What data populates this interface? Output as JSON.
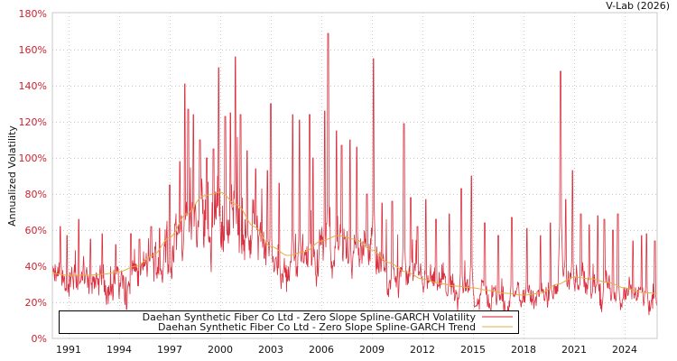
{
  "header": {
    "credit": "V-Lab (2026)"
  },
  "colors": {
    "volatility": "#d7192a",
    "trend": "#e0b040",
    "ytick": "#d0202e",
    "grid": "#c8c8c8",
    "frame": "#c8c8c8"
  },
  "legend": {
    "items": [
      {
        "label": "Daehan Synthetic Fiber Co Ltd - Zero Slope Spline-GARCH Volatility",
        "color": "#d7192a"
      },
      {
        "label": "Daehan Synthetic Fiber Co Ltd - Zero Slope Spline-GARCH Trend",
        "color": "#e0b040"
      }
    ]
  },
  "chart_data": {
    "type": "line",
    "title": "",
    "credit": "V-Lab (2026)",
    "xlabel": "",
    "ylabel": "Annualized Volatility",
    "ylim": [
      0,
      180
    ],
    "xlim": [
      1990.0,
      2025.9
    ],
    "grid": true,
    "legend_position": "bottom-left inside",
    "y_ticks": [
      "0%",
      "20%",
      "40%",
      "60%",
      "80%",
      "100%",
      "120%",
      "140%",
      "160%",
      "180%"
    ],
    "x_ticks": [
      "1991",
      "1994",
      "1997",
      "2000",
      "2003",
      "2006",
      "2009",
      "2012",
      "2015",
      "2018",
      "2021",
      "2024"
    ],
    "series": [
      {
        "name": "Daehan Synthetic Fiber Co Ltd - Zero Slope Spline-GARCH Trend",
        "x": [
          1990.0,
          1991.0,
          1992.0,
          1993.0,
          1994.0,
          1995.0,
          1996.0,
          1997.0,
          1998.0,
          1999.0,
          2000.0,
          2001.0,
          2002.0,
          2003.0,
          2004.0,
          2005.0,
          2006.0,
          2007.0,
          2008.0,
          2009.0,
          2010.0,
          2011.0,
          2012.0,
          2013.0,
          2014.0,
          2015.0,
          2016.0,
          2017.0,
          2018.0,
          2019.0,
          2020.0,
          2021.0,
          2022.0,
          2023.0,
          2024.0,
          2025.0,
          2025.9
        ],
        "values": [
          36,
          35,
          35,
          35.5,
          37,
          40,
          46,
          56,
          69,
          79,
          81,
          74,
          62,
          51,
          46,
          48,
          54,
          57,
          55,
          49,
          42,
          37,
          33,
          30.5,
          29,
          28,
          26.5,
          25,
          24,
          25,
          30,
          34,
          33,
          31,
          28,
          25.5,
          25
        ]
      },
      {
        "name": "Daehan Synthetic Fiber Co Ltd - Zero Slope Spline-GARCH Volatility",
        "baseline_ratio": 0.85,
        "spikes": [
          [
            1990.5,
            62
          ],
          [
            1990.9,
            57
          ],
          [
            1991.6,
            66
          ],
          [
            1992.3,
            55
          ],
          [
            1993.0,
            58
          ],
          [
            1993.8,
            52
          ],
          [
            1994.7,
            58
          ],
          [
            1995.2,
            55
          ],
          [
            1995.9,
            62
          ],
          [
            1996.4,
            61
          ],
          [
            1997.0,
            85
          ],
          [
            1997.6,
            98
          ],
          [
            1997.9,
            141
          ],
          [
            1998.1,
            127
          ],
          [
            1998.4,
            124
          ],
          [
            1998.8,
            110
          ],
          [
            1999.2,
            100
          ],
          [
            1999.6,
            105
          ],
          [
            1999.9,
            150
          ],
          [
            2000.3,
            123
          ],
          [
            2000.6,
            125
          ],
          [
            2000.9,
            156
          ],
          [
            2001.2,
            124
          ],
          [
            2001.6,
            104
          ],
          [
            2002.1,
            94
          ],
          [
            2002.8,
            93
          ],
          [
            2003.0,
            130
          ],
          [
            2003.5,
            86
          ],
          [
            2004.3,
            124
          ],
          [
            2004.7,
            121
          ],
          [
            2005.3,
            124
          ],
          [
            2005.5,
            100
          ],
          [
            2006.2,
            126
          ],
          [
            2006.4,
            169
          ],
          [
            2006.9,
            115
          ],
          [
            2007.2,
            107
          ],
          [
            2007.7,
            110
          ],
          [
            2008.1,
            106
          ],
          [
            2008.7,
            80
          ],
          [
            2009.1,
            155
          ],
          [
            2009.6,
            75
          ],
          [
            2010.2,
            76
          ],
          [
            2010.9,
            119
          ],
          [
            2011.3,
            78
          ],
          [
            2011.7,
            62
          ],
          [
            2012.2,
            77
          ],
          [
            2012.8,
            66
          ],
          [
            2013.6,
            69
          ],
          [
            2014.3,
            83
          ],
          [
            2014.9,
            90
          ],
          [
            2015.7,
            64
          ],
          [
            2016.5,
            57
          ],
          [
            2017.3,
            67
          ],
          [
            2018.2,
            61
          ],
          [
            2019.0,
            57
          ],
          [
            2019.6,
            64
          ],
          [
            2020.2,
            148
          ],
          [
            2020.5,
            77
          ],
          [
            2020.9,
            93
          ],
          [
            2021.4,
            69
          ],
          [
            2021.9,
            63
          ],
          [
            2022.4,
            68
          ],
          [
            2022.8,
            66
          ],
          [
            2023.3,
            60
          ],
          [
            2023.6,
            69
          ],
          [
            2024.5,
            54
          ],
          [
            2025.0,
            57
          ],
          [
            2025.3,
            58
          ],
          [
            2025.8,
            54
          ]
        ]
      }
    ]
  }
}
